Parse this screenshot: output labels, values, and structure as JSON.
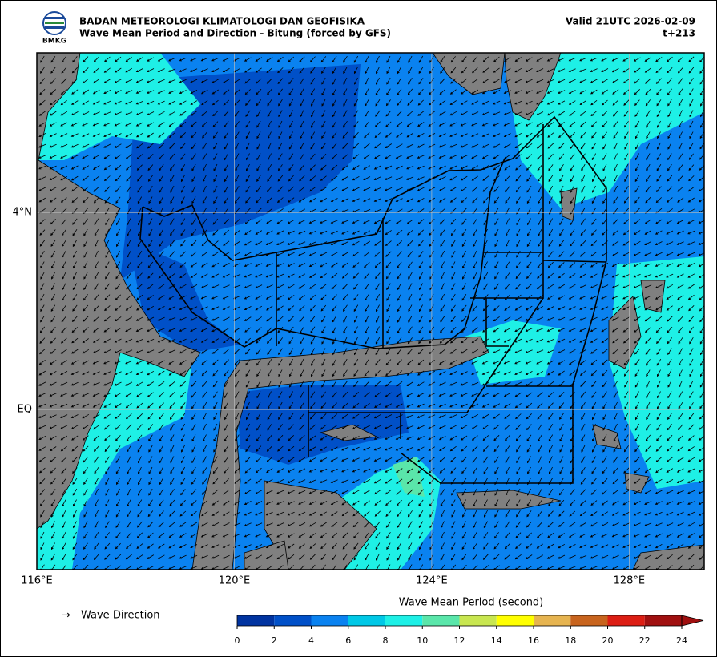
{
  "header": {
    "org": "BADAN METEOROLOGI KLIMATOLOGI DAN GEOFISIKA",
    "title": "Wave Mean Period and Direction - Bitung (forced by GFS)",
    "valid": "Valid 21UTC 2026-02-09",
    "step": "t+213",
    "logo": "BMKG"
  },
  "map": {
    "xlim": [
      116,
      129.52
    ],
    "ylim": [
      -3.25,
      7.24
    ],
    "xticks": [
      {
        "value": 116,
        "label": "116°E"
      },
      {
        "value": 120,
        "label": "120°E"
      },
      {
        "value": 124,
        "label": "124°E"
      },
      {
        "value": 128,
        "label": "128°E"
      }
    ],
    "yticks": [
      {
        "value": 4,
        "label": "4°N"
      },
      {
        "value": 0,
        "label": "EQ"
      }
    ]
  },
  "legend": {
    "symbol": "→",
    "label": "Wave Direction"
  },
  "colorbar": {
    "label": "Wave Mean Period (second)",
    "ticks": [
      0,
      2,
      4,
      6,
      8,
      10,
      12,
      14,
      16,
      18,
      20,
      22,
      24
    ],
    "colors": [
      "#0033a0",
      "#0050c8",
      "#0a82f0",
      "#00c8e6",
      "#1ef0e6",
      "#5ae6aa",
      "#c8e650",
      "#ffff00",
      "#e6b450",
      "#c8641e",
      "#dc1e14",
      "#a01010"
    ]
  }
}
